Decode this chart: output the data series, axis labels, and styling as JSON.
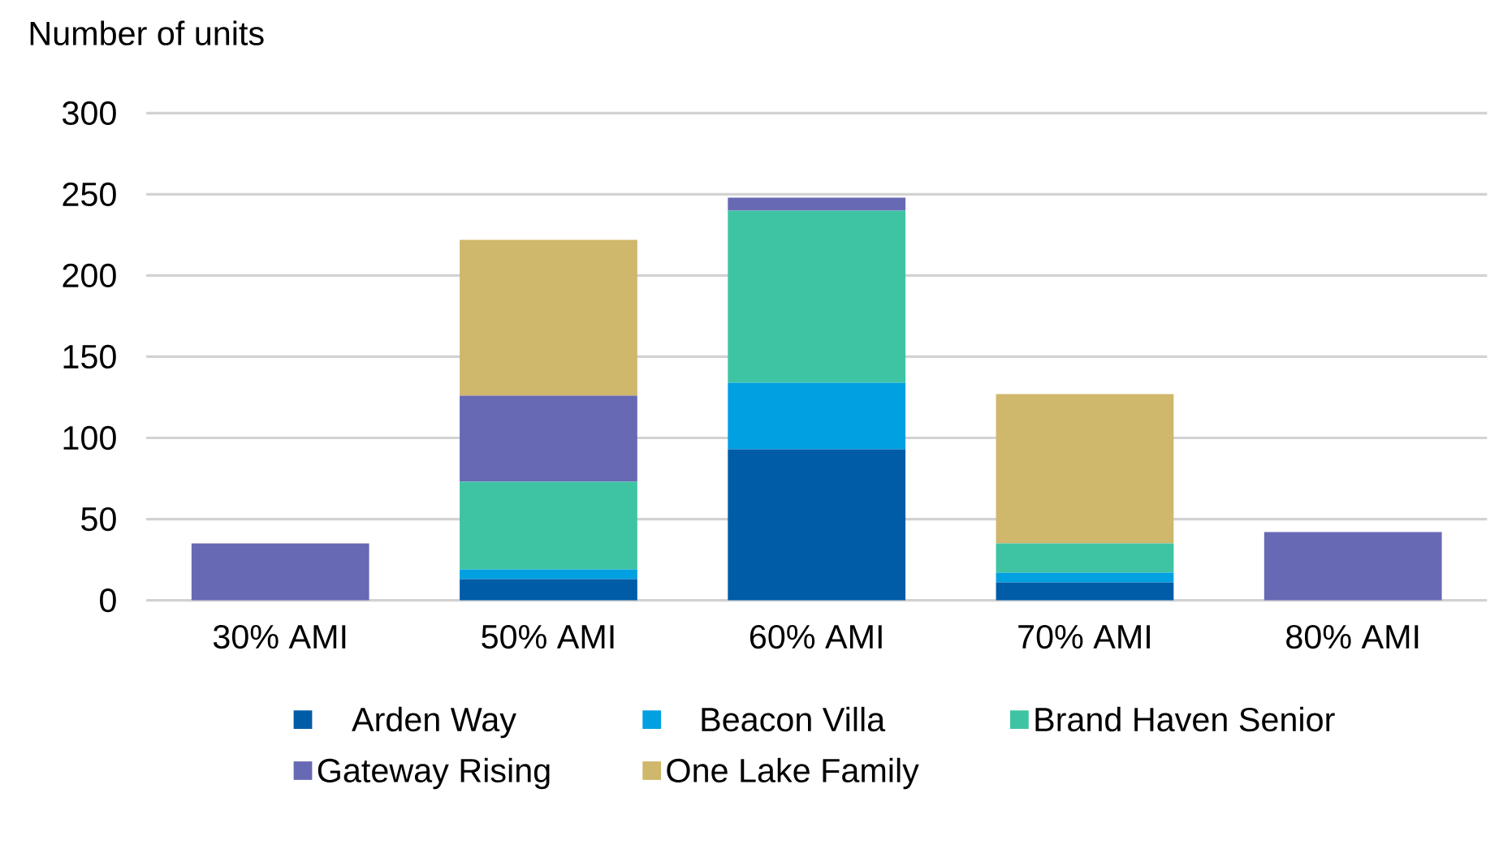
{
  "chart_data": {
    "type": "bar",
    "stacked": true,
    "ylabel": "Number of units",
    "categories": [
      "30% AMI",
      "50% AMI",
      "60% AMI",
      "70% AMI",
      "80% AMI"
    ],
    "series": [
      {
        "name": "Arden Way",
        "color": "#005ca6",
        "values": [
          0,
          13,
          93,
          11,
          0
        ]
      },
      {
        "name": "Beacon Villa",
        "color": "#00a0e1",
        "values": [
          0,
          6,
          41,
          6,
          0
        ]
      },
      {
        "name": "Brand Haven Senior",
        "color": "#3ec4a3",
        "values": [
          0,
          54,
          106,
          18,
          0
        ]
      },
      {
        "name": "Gateway Rising",
        "color": "#6869b4",
        "values": [
          35,
          53,
          8,
          0,
          42
        ]
      },
      {
        "name": "One Lake Family",
        "color": "#cfb76b",
        "values": [
          0,
          96,
          0,
          92,
          0
        ]
      }
    ],
    "ylim": [
      0,
      300
    ],
    "yticks": [
      0,
      50,
      100,
      150,
      200,
      250,
      300
    ],
    "grid": "y",
    "legend": "bottom"
  }
}
